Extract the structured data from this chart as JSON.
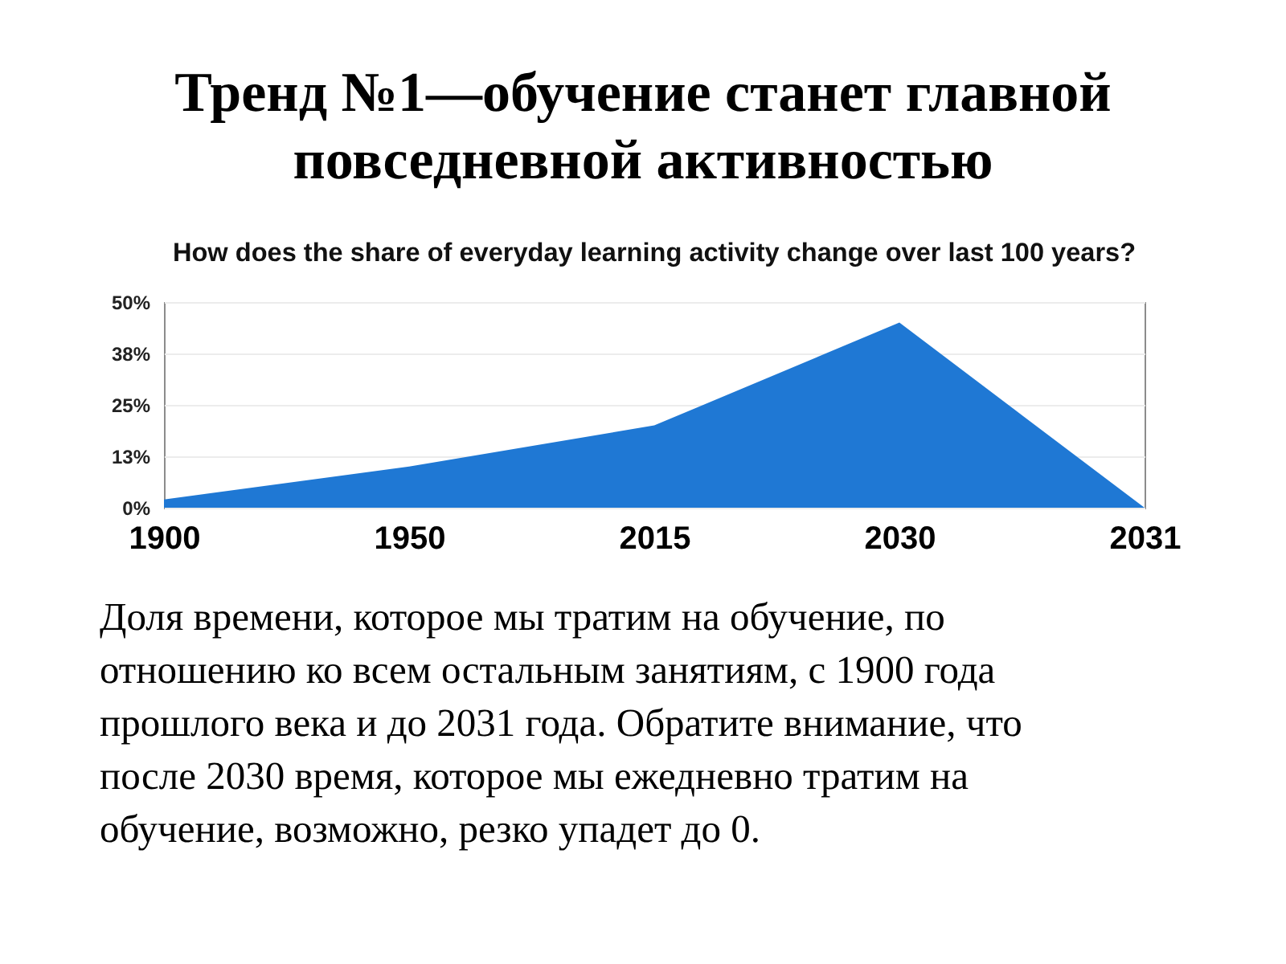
{
  "chart_data": {
    "type": "area",
    "title": "Тренд №1—обучение станет главной повседневной активностью",
    "subtitle": "How does the share of everyday learning activity change over last 100 years?",
    "categories": [
      "1900",
      "1950",
      "2015",
      "2030",
      "2031"
    ],
    "values": [
      2,
      10,
      20,
      45,
      0
    ],
    "color": "#1f78d4",
    "ylim": [
      0,
      50
    ],
    "yticks": [
      {
        "value": 0,
        "label": "0%"
      },
      {
        "value": 12.5,
        "label": "13%"
      },
      {
        "value": 25,
        "label": "25%"
      },
      {
        "value": 37.5,
        "label": "38%"
      },
      {
        "value": 50,
        "label": "50%"
      }
    ],
    "grid": "y",
    "annotations": [
      "Доля времени, которое мы тратим на обучение, по отношению ко всем остальным занятиям, с 1900 года прошлого века и до 2031 года. Обратите внимание, что после 2030 время, которое мы ежедневно тратим на обучение, возможно, резко упадет до 0."
    ]
  }
}
